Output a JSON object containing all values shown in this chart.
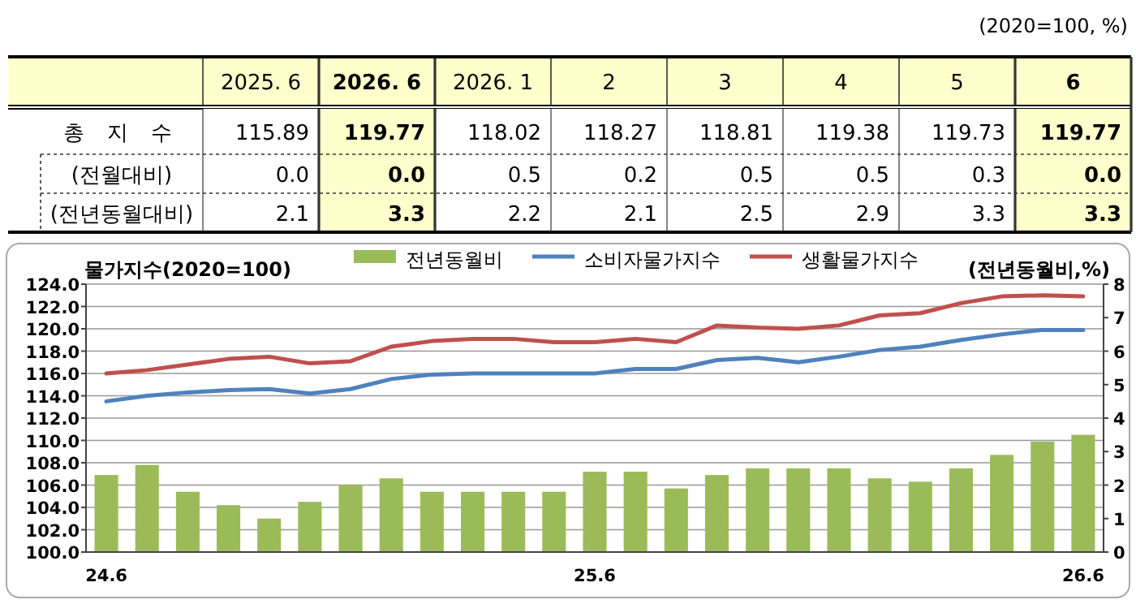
{
  "chart_data": [
    {
      "type": "heatmap",
      "annotations": [
        "(2020=100, %)"
      ],
      "categories": [
        "2025. 6",
        "2026. 6",
        "2026. 1",
        "2",
        "3",
        "4",
        "5",
        "6"
      ],
      "y_categories": [
        "총 지 수",
        "(전월대비)",
        "(전년동월대비)"
      ],
      "colors": [
        "#ffffff",
        "#ffffcc",
        "#ffffff",
        "#ffffff",
        "#ffffff",
        "#ffffff",
        "#ffffff",
        "#ffffcc"
      ],
      "cells": [
        [
          115.89,
          119.77,
          118.02,
          118.27,
          118.81,
          119.38,
          119.73,
          119.77
        ],
        [
          0.0,
          0.0,
          0.5,
          0.2,
          0.5,
          0.5,
          0.3,
          0.0
        ],
        [
          2.1,
          3.3,
          2.2,
          2.1,
          2.5,
          2.9,
          3.3,
          3.3
        ]
      ],
      "cell_labels": [
        [
          "115.89",
          "119.77",
          "118.02",
          "118.27",
          "118.81",
          "119.38",
          "119.73",
          "119.77"
        ],
        [
          "0.0",
          "0.0",
          "0.5",
          "0.2",
          "0.5",
          "0.5",
          "0.3",
          "0.0"
        ],
        [
          "2.1",
          "3.3",
          "2.2",
          "2.1",
          "2.5",
          "2.9",
          "3.3",
          "3.3"
        ]
      ]
    },
    {
      "type": "bar",
      "title": "물가지수(2020=100)",
      "y2label": "(전년동월비,%)",
      "categories": [
        "24.6",
        null,
        null,
        null,
        null,
        null,
        null,
        null,
        null,
        null,
        null,
        null,
        "25.6",
        null,
        null,
        null,
        null,
        null,
        null,
        null,
        null,
        null,
        null,
        null,
        "26.6"
      ],
      "series": [
        {
          "name": "전년동월비",
          "type": "bar",
          "axis": "y2",
          "color": "#9bbb59",
          "values": [
            2.3,
            2.6,
            1.8,
            1.4,
            1.0,
            1.5,
            2.0,
            2.2,
            1.8,
            1.8,
            1.8,
            1.8,
            2.4,
            2.4,
            1.9,
            2.3,
            2.5,
            2.5,
            2.5,
            2.2,
            2.1,
            2.5,
            2.9,
            3.3,
            3.5
          ]
        },
        {
          "name": "소비자물가지수",
          "type": "line",
          "color": "#4f81bd",
          "values": [
            113.5,
            114.0,
            114.3,
            114.5,
            114.6,
            114.2,
            114.6,
            115.5,
            115.9,
            116.0,
            116.0,
            116.0,
            116.0,
            116.4,
            116.4,
            117.2,
            117.4,
            117.0,
            117.5,
            118.1,
            118.4,
            119.0,
            119.5,
            119.9,
            119.9
          ]
        },
        {
          "name": "생활물가지수",
          "type": "line",
          "color": "#c0504d",
          "values": [
            116.0,
            116.3,
            116.8,
            117.3,
            117.5,
            116.9,
            117.1,
            118.4,
            118.9,
            119.1,
            119.1,
            118.8,
            118.8,
            119.1,
            118.8,
            120.3,
            120.1,
            120.0,
            120.3,
            121.2,
            121.4,
            122.3,
            122.9,
            123.0,
            122.9
          ]
        }
      ],
      "ylim": [
        100,
        124
      ],
      "yticks": [
        {
          "value": 100,
          "label": "100.0"
        },
        {
          "value": 102,
          "label": "102.0"
        },
        {
          "value": 104,
          "label": "104.0"
        },
        {
          "value": 106,
          "label": "106.0"
        },
        {
          "value": 108,
          "label": "108.0"
        },
        {
          "value": 110,
          "label": "110.0"
        },
        {
          "value": 112,
          "label": "112.0"
        },
        {
          "value": 114,
          "label": "114.0"
        },
        {
          "value": 116,
          "label": "116.0"
        },
        {
          "value": 118,
          "label": "118.0"
        },
        {
          "value": 120,
          "label": "120.0"
        },
        {
          "value": 122,
          "label": "122.0"
        },
        {
          "value": 124,
          "label": "124.0"
        }
      ],
      "y2lim": [
        0,
        8
      ],
      "y2ticks": [
        0,
        1,
        2,
        3,
        4,
        5,
        6,
        7,
        8
      ],
      "grid": "y",
      "legend": "top",
      "marker": "none"
    }
  ]
}
